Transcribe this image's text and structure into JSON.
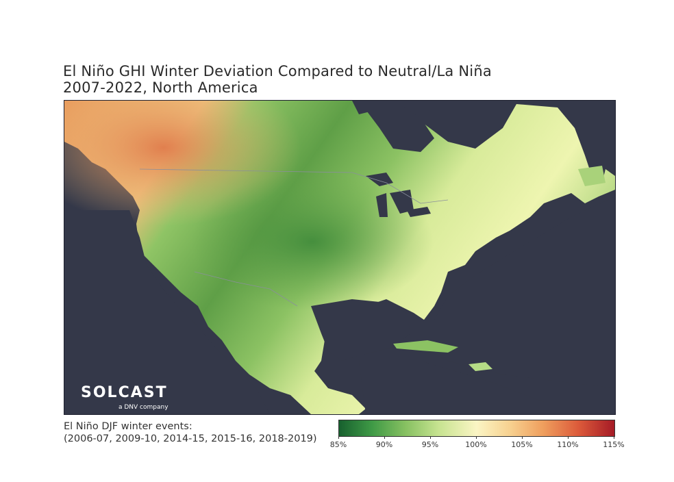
{
  "title": {
    "line1": "El Niño GHI Winter Deviation Compared to Neutral/La Niña",
    "line2": "2007-2022, North America"
  },
  "logo": {
    "wordmark": "SOLCAST",
    "subtitle": "a DNV company"
  },
  "events_note": {
    "line1": "El Niño DJF winter events:",
    "line2": "(2006-07, 2009-10, 2014-15, 2015-16, 2018-2019)"
  },
  "colorbar": {
    "tick_labels": [
      "85%",
      "90%",
      "95%",
      "100%",
      "105%",
      "110%",
      "115%"
    ],
    "min": 85,
    "max": 115,
    "colors": {
      "low": "#17602e",
      "neutral": "#fbf5c4",
      "high": "#a51b26"
    }
  },
  "colors": {
    "ocean": "#343849",
    "land_green": "#6fae4f",
    "land_yellow": "#e3efa1",
    "land_orange": "#eba56a"
  }
}
